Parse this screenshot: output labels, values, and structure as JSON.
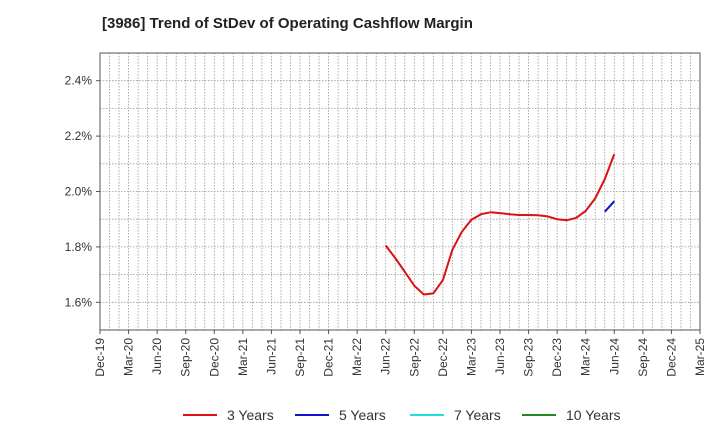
{
  "title": "[3986]  Trend of StDev of Operating Cashflow Margin",
  "chart_data": {
    "type": "line",
    "title": "[3986]  Trend of StDev of Operating Cashflow Margin",
    "xlabel": "",
    "ylabel": "",
    "x_ticks": [
      "Dec-19",
      "Mar-20",
      "Jun-20",
      "Sep-20",
      "Dec-20",
      "Mar-21",
      "Jun-21",
      "Sep-21",
      "Dec-21",
      "Mar-22",
      "Jun-22",
      "Sep-22",
      "Dec-22",
      "Mar-23",
      "Jun-23",
      "Sep-23",
      "Dec-23",
      "Mar-24",
      "Jun-24",
      "Sep-24",
      "Dec-24",
      "Mar-25"
    ],
    "y_ticks": [
      "1.6%",
      "1.8%",
      "2.0%",
      "2.2%",
      "2.4%"
    ],
    "ylim": [
      1.5,
      2.5
    ],
    "y_unit": "%",
    "grid": true,
    "legend_position": "bottom",
    "series": [
      {
        "name": "3 Years",
        "color": "#dd1111",
        "x": [
          "Jun-22",
          "Jul-22",
          "Aug-22",
          "Sep-22",
          "Oct-22",
          "Nov-22",
          "Dec-22",
          "Jan-23",
          "Feb-23",
          "Mar-23",
          "Apr-23",
          "May-23",
          "Jun-23",
          "Jul-23",
          "Aug-23",
          "Sep-23",
          "Oct-23",
          "Nov-23",
          "Dec-23",
          "Jan-24",
          "Feb-24",
          "Mar-24",
          "Apr-24",
          "May-24",
          "Jun-24"
        ],
        "values": [
          1.805,
          1.76,
          1.71,
          1.66,
          1.628,
          1.632,
          1.68,
          1.79,
          1.855,
          1.898,
          1.918,
          1.925,
          1.922,
          1.918,
          1.915,
          1.915,
          1.914,
          1.91,
          1.9,
          1.896,
          1.905,
          1.93,
          1.975,
          2.045,
          2.135
        ]
      },
      {
        "name": "5 Years",
        "color": "#1111cc",
        "x": [
          "May-24",
          "Jun-24"
        ],
        "values": [
          1.927,
          1.965
        ]
      },
      {
        "name": "7 Years",
        "color": "#22dddd",
        "x": [],
        "values": []
      },
      {
        "name": "10 Years",
        "color": "#228822",
        "x": [],
        "values": []
      }
    ]
  }
}
